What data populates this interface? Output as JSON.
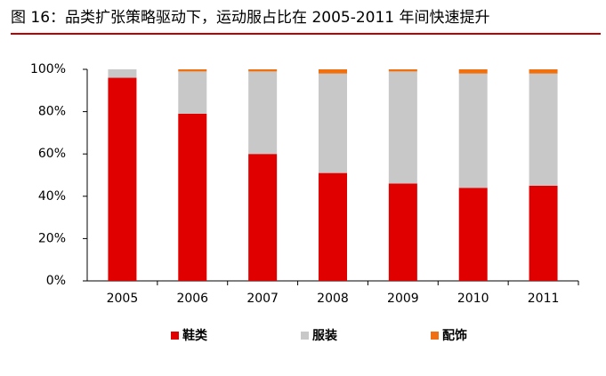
{
  "chart_data": {
    "type": "stacked-bar",
    "title": "图 16：品类扩张策略驱动下，运动服占比在 2005-2011 年间快速提升",
    "categories": [
      "2005",
      "2006",
      "2007",
      "2008",
      "2009",
      "2010",
      "2011"
    ],
    "series": [
      {
        "name": "鞋类",
        "color": "#e00000",
        "values": [
          96,
          79,
          60,
          51,
          46,
          44,
          45
        ]
      },
      {
        "name": "服装",
        "color": "#c8c8c8",
        "values": [
          4,
          20,
          39,
          47,
          53,
          54,
          53
        ]
      },
      {
        "name": "配饰",
        "color": "#f07010",
        "values": [
          0,
          1,
          1,
          2,
          1,
          2,
          2
        ]
      }
    ],
    "ylim": [
      0,
      100
    ],
    "yticks": [
      {
        "value": 0,
        "label": "0%"
      },
      {
        "value": 20,
        "label": "20%"
      },
      {
        "value": 40,
        "label": "40%"
      },
      {
        "value": 60,
        "label": "60%"
      },
      {
        "value": 80,
        "label": "80%"
      },
      {
        "value": 100,
        "label": "100%"
      }
    ],
    "grid": false,
    "legend": "bottom"
  }
}
